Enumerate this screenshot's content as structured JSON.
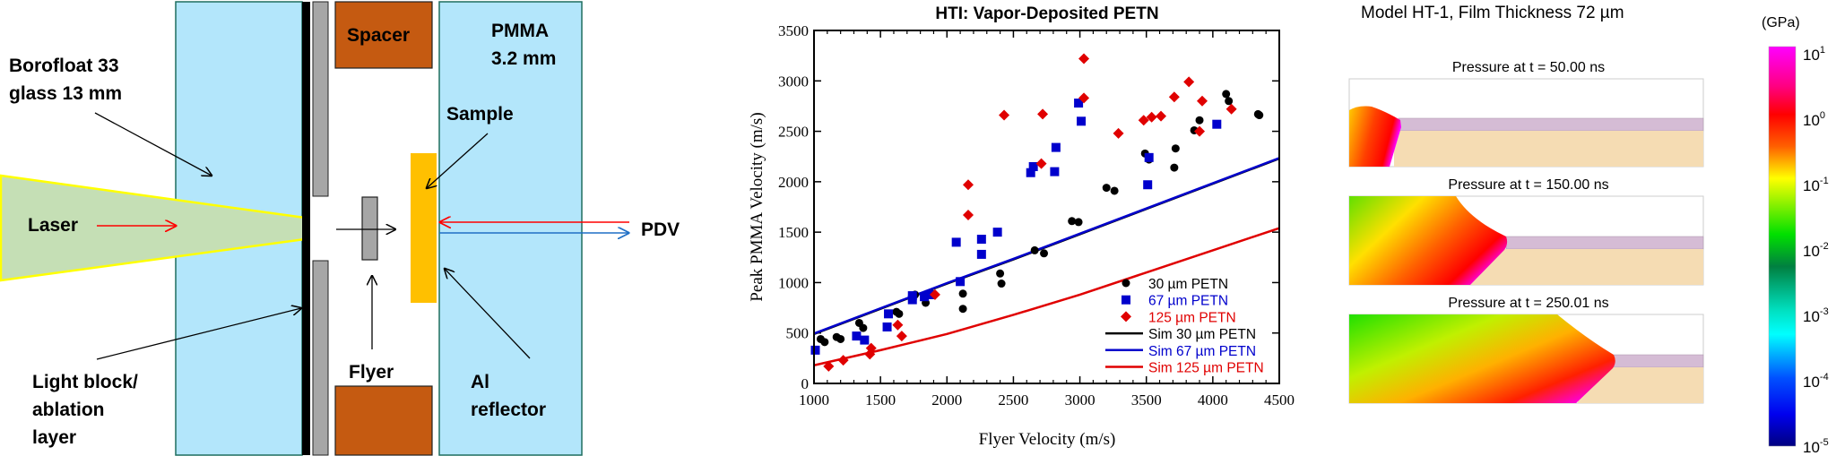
{
  "diagram": {
    "labels": {
      "glass_line1": "Borofloat 33",
      "glass_line2": "glass 13 mm",
      "laser": "Laser",
      "light_block_line1": "Light block/",
      "light_block_line2": "ablation",
      "light_block_line3": "layer",
      "spacer": "Spacer",
      "flyer": "Flyer",
      "pmma_line1": "PMMA",
      "pmma_line2": "3.2 mm",
      "sample": "Sample",
      "pdv": "PDV",
      "al_line1": "Al",
      "al_line2": "reflector"
    },
    "colors": {
      "glass": "#b3e6fb",
      "laser": "#c5dfb5",
      "laser_edge": "#ffff00",
      "spacer": "#c55a11",
      "sample": "#ffc000",
      "flyer": "#a6a6a6",
      "pdv_in": "#ff0000",
      "pdv_out": "#1f6fc5"
    }
  },
  "chart_data": {
    "type": "scatter",
    "title": "HTI: Vapor-Deposited PETN",
    "xlabel": "Flyer Velocity (m/s)",
    "ylabel": "Peak PMMA Velocity (m/s)",
    "xlim": [
      1000,
      4500
    ],
    "ylim": [
      0,
      3500
    ],
    "xticks": [
      1000,
      1500,
      2000,
      2500,
      3000,
      3500,
      4000,
      4500
    ],
    "yticks": [
      0,
      500,
      1000,
      1500,
      2000,
      2500,
      3000,
      3500
    ],
    "grid": false,
    "legend_position": "bottom-right",
    "series": [
      {
        "name": "30 µm PETN",
        "kind": "points",
        "marker": "circle",
        "color": "#000000",
        "points": [
          [
            1050,
            440
          ],
          [
            1080,
            410
          ],
          [
            1170,
            460
          ],
          [
            1200,
            440
          ],
          [
            1340,
            600
          ],
          [
            1370,
            550
          ],
          [
            1620,
            710
          ],
          [
            1640,
            690
          ],
          [
            1760,
            880
          ],
          [
            1840,
            800
          ],
          [
            2120,
            890
          ],
          [
            2120,
            740
          ],
          [
            2400,
            1090
          ],
          [
            2410,
            990
          ],
          [
            2660,
            1320
          ],
          [
            2730,
            1290
          ],
          [
            2940,
            1610
          ],
          [
            2990,
            1600
          ],
          [
            3200,
            1940
          ],
          [
            3260,
            1910
          ],
          [
            3490,
            2280
          ],
          [
            3520,
            2220
          ],
          [
            3710,
            2140
          ],
          [
            3720,
            2330
          ],
          [
            3860,
            2510
          ],
          [
            3900,
            2610
          ],
          [
            4100,
            2870
          ],
          [
            4120,
            2800
          ],
          [
            4340,
            2670
          ],
          [
            4350,
            2660
          ]
        ]
      },
      {
        "name": "67 µm PETN",
        "kind": "points",
        "marker": "square",
        "color": "#0000cc",
        "points": [
          [
            1010,
            330
          ],
          [
            1320,
            470
          ],
          [
            1380,
            430
          ],
          [
            1550,
            560
          ],
          [
            1560,
            690
          ],
          [
            1740,
            870
          ],
          [
            1740,
            830
          ],
          [
            1830,
            860
          ],
          [
            1870,
            880
          ],
          [
            2070,
            1400
          ],
          [
            2100,
            1010
          ],
          [
            2260,
            1430
          ],
          [
            2260,
            1280
          ],
          [
            2380,
            1500
          ],
          [
            2630,
            2090
          ],
          [
            2650,
            2150
          ],
          [
            2810,
            2100
          ],
          [
            2820,
            2340
          ],
          [
            2990,
            2780
          ],
          [
            3010,
            2600
          ],
          [
            3510,
            1970
          ],
          [
            3520,
            2240
          ],
          [
            4030,
            2570
          ]
        ]
      },
      {
        "name": "125 µm PETN",
        "kind": "points",
        "marker": "diamond",
        "color": "#e00000",
        "points": [
          [
            1110,
            170
          ],
          [
            1220,
            230
          ],
          [
            1420,
            290
          ],
          [
            1430,
            350
          ],
          [
            1630,
            580
          ],
          [
            1660,
            470
          ],
          [
            1910,
            880
          ],
          [
            2160,
            1670
          ],
          [
            2160,
            1970
          ],
          [
            2430,
            2660
          ],
          [
            2710,
            2180
          ],
          [
            2720,
            2670
          ],
          [
            3030,
            3220
          ],
          [
            3030,
            2830
          ],
          [
            3290,
            2480
          ],
          [
            3480,
            2610
          ],
          [
            3540,
            2640
          ],
          [
            3610,
            2650
          ],
          [
            3710,
            2840
          ],
          [
            3820,
            2990
          ],
          [
            3900,
            2500
          ],
          [
            3920,
            2800
          ],
          [
            4140,
            2720
          ]
        ]
      },
      {
        "name": "Sim 30 µm PETN",
        "kind": "line",
        "color": "#000000",
        "points": [
          [
            1000,
            490
          ],
          [
            1500,
            740
          ],
          [
            2000,
            990
          ],
          [
            2500,
            1230
          ],
          [
            3000,
            1480
          ],
          [
            3500,
            1730
          ],
          [
            4000,
            1980
          ],
          [
            4500,
            2230
          ]
        ]
      },
      {
        "name": "Sim 67 µm PETN",
        "kind": "line",
        "color": "#0000cc",
        "points": [
          [
            1000,
            495
          ],
          [
            1500,
            745
          ],
          [
            2000,
            995
          ],
          [
            2500,
            1235
          ],
          [
            3000,
            1485
          ],
          [
            3500,
            1735
          ],
          [
            4000,
            1985
          ],
          [
            4500,
            2235
          ]
        ]
      },
      {
        "name": "Sim 125 µm PETN",
        "kind": "line",
        "color": "#e00000",
        "points": [
          [
            1000,
            180
          ],
          [
            1500,
            330
          ],
          [
            2000,
            490
          ],
          [
            2500,
            680
          ],
          [
            3000,
            880
          ],
          [
            3500,
            1100
          ],
          [
            4000,
            1320
          ],
          [
            4500,
            1540
          ]
        ]
      }
    ]
  },
  "simulation": {
    "title": "Model HT-1, Film Thickness 72 µm",
    "panels": [
      {
        "title": "Pressure at t =  50.00 ns"
      },
      {
        "title": "Pressure at t = 150.00 ns"
      },
      {
        "title": "Pressure at t = 250.01 ns"
      }
    ],
    "colorbar": {
      "unit": "(GPa)",
      "ticks": [
        {
          "base": "10",
          "exp": "1"
        },
        {
          "base": "10",
          "exp": "0"
        },
        {
          "base": "10",
          "exp": "-1"
        },
        {
          "base": "10",
          "exp": "-2"
        },
        {
          "base": "10",
          "exp": "-3"
        },
        {
          "base": "10",
          "exp": "-4"
        },
        {
          "base": "10",
          "exp": "-5"
        }
      ],
      "colors": [
        "#ff00ff",
        "#ff0000",
        "#ff8000",
        "#ffff00",
        "#00e000",
        "#008040",
        "#00e0c0",
        "#00ffff",
        "#0060ff",
        "#0000ff",
        "#000080"
      ]
    }
  }
}
